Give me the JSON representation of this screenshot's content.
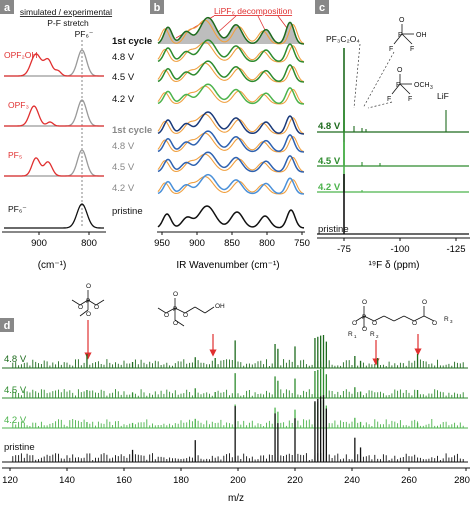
{
  "colors": {
    "black": "#111111",
    "gray": "#999999",
    "red": "#e03030",
    "orange": "#f0a040",
    "dkgreen": "#1e6b1e",
    "green": "#2e8b2e",
    "ltgreen": "#4cb34c",
    "navy": "#1a3a7a",
    "blue": "#2f62b0",
    "ltblue": "#4a90d9",
    "fill": "#bdbdbd"
  },
  "panel_a": {
    "letter": "a",
    "header1": "simulated / experimental",
    "header2": "P-F stretch",
    "header3": "PF₆⁻",
    "labels": [
      "OPF₂OH",
      "OPF₃",
      "PF₅",
      "PF₆⁻"
    ],
    "ticks": [
      "900",
      "800"
    ],
    "xlabel": "(cm⁻¹)"
  },
  "panel_b": {
    "letter": "b",
    "annotation": "LiPF₆ decomposition",
    "green_labels": [
      "1st cycle",
      "4.8 V",
      "4.5 V",
      "4.2 V"
    ],
    "blue_labels": [
      "1st cycle",
      "4.8 V",
      "4.5 V",
      "4.2 V"
    ],
    "pristine": "pristine",
    "ticks": [
      "950",
      "900",
      "850",
      "800",
      "750"
    ],
    "xlabel": "IR Wavenumber (cm⁻¹)"
  },
  "panel_c": {
    "letter": "c",
    "labels": [
      "PF₃C₂O₄",
      "LiF"
    ],
    "traces": [
      "4.8 V",
      "4.5 V",
      "4.2 V",
      "pristine"
    ],
    "ticks": [
      "-75",
      "-100",
      "-125"
    ],
    "xlabel": "¹⁹F δ (ppm)"
  },
  "panel_d": {
    "letter": "d",
    "traces": [
      "4.8 V",
      "4.5 V",
      "4.2 V",
      "pristine"
    ],
    "ticks": [
      "120",
      "140",
      "160",
      "180",
      "200",
      "220",
      "240",
      "260",
      "280"
    ],
    "xlabel": "m/z"
  }
}
